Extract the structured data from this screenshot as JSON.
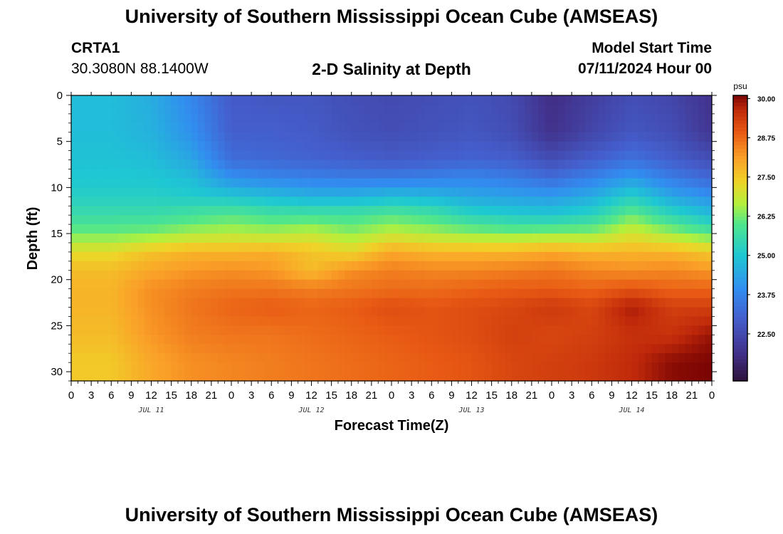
{
  "header": {
    "title": "University of Southern Mississippi Ocean Cube (AMSEAS)",
    "station": "CRTA1",
    "coordinates": "30.3080N  88.1400W",
    "plot_title": "2-D Salinity at Depth",
    "model_start_label": "Model Start Time",
    "model_start_value": "07/11/2024 Hour 00"
  },
  "footer": {
    "title": "University of Southern Mississippi Ocean Cube (AMSEAS)"
  },
  "chart_data": {
    "type": "heatmap",
    "title": "2-D Salinity at Depth",
    "xlabel": "Forecast Time(Z)",
    "ylabel": "Depth (ft)",
    "x_hours": [
      0,
      3,
      6,
      9,
      12,
      15,
      18,
      21,
      24,
      27,
      30,
      33,
      36,
      39,
      42,
      45,
      48,
      51,
      54,
      57,
      60,
      63,
      66,
      69,
      72,
      75,
      78,
      81,
      84,
      87,
      90,
      93,
      96
    ],
    "x_tick_labels": [
      "0",
      "3",
      "6",
      "9",
      "12",
      "15",
      "18",
      "21",
      "0",
      "3",
      "6",
      "9",
      "12",
      "15",
      "18",
      "21",
      "0",
      "3",
      "6",
      "9",
      "12",
      "15",
      "18",
      "21",
      "0",
      "3",
      "6",
      "9",
      "12",
      "15",
      "18",
      "21",
      "0"
    ],
    "day_labels": [
      {
        "x_hour": 12,
        "label": "JUL 11"
      },
      {
        "x_hour": 36,
        "label": "JUL 12"
      },
      {
        "x_hour": 60,
        "label": "JUL 13"
      },
      {
        "x_hour": 84,
        "label": "JUL 14"
      }
    ],
    "y_ticks": [
      0,
      5,
      10,
      15,
      20,
      25,
      30
    ],
    "y_tick_labels": [
      "0",
      "5",
      "10",
      "15",
      "20",
      "25",
      "30"
    ],
    "ylim": [
      0,
      31
    ],
    "y_inverted": true,
    "depth_levels": [
      0,
      4,
      7,
      9,
      11,
      13,
      15,
      17,
      19,
      21,
      23,
      26,
      29
    ],
    "time_hours": [
      0,
      6,
      12,
      18,
      24,
      30,
      36,
      42,
      48,
      54,
      60,
      66,
      72,
      78,
      84,
      90,
      96
    ],
    "values_psu": [
      [
        24.8,
        24.8,
        24.5,
        23.8,
        22.9,
        22.8,
        22.8,
        22.6,
        22.5,
        22.6,
        22.7,
        22.5,
        21.8,
        22.2,
        22.6,
        22.4,
        21.9
      ],
      [
        24.8,
        24.8,
        24.6,
        24.0,
        23.0,
        23.0,
        22.9,
        22.7,
        22.6,
        22.7,
        22.8,
        22.6,
        21.9,
        22.4,
        22.8,
        22.6,
        22.0
      ],
      [
        24.9,
        24.9,
        24.8,
        24.4,
        23.3,
        23.2,
        23.1,
        23.0,
        22.9,
        23.0,
        23.1,
        23.0,
        22.6,
        23.0,
        23.4,
        23.0,
        22.6
      ],
      [
        25.0,
        25.0,
        25.0,
        24.8,
        24.0,
        23.8,
        23.7,
        23.6,
        23.6,
        23.7,
        23.8,
        23.6,
        23.3,
        23.7,
        24.2,
        23.6,
        23.2
      ],
      [
        25.2,
        25.2,
        25.2,
        25.1,
        25.0,
        24.8,
        24.6,
        24.6,
        24.8,
        24.7,
        24.4,
        24.3,
        24.2,
        24.5,
        25.2,
        24.4,
        24.0
      ],
      [
        25.6,
        25.6,
        25.6,
        25.8,
        26.0,
        25.8,
        25.8,
        25.8,
        26.0,
        25.8,
        25.3,
        25.1,
        25.0,
        25.3,
        26.2,
        25.4,
        24.8
      ],
      [
        26.2,
        26.2,
        26.3,
        26.6,
        26.7,
        26.6,
        26.8,
        26.4,
        26.8,
        26.6,
        26.4,
        26.3,
        26.4,
        26.4,
        27.0,
        26.5,
        26.0
      ],
      [
        27.2,
        27.2,
        27.6,
        27.8,
        27.8,
        27.9,
        27.6,
        27.3,
        28.0,
        27.8,
        27.8,
        27.8,
        28.0,
        27.8,
        27.8,
        27.8,
        27.5
      ],
      [
        27.7,
        27.7,
        28.0,
        28.2,
        28.3,
        28.2,
        27.7,
        28.3,
        28.5,
        28.4,
        28.4,
        28.5,
        28.6,
        28.4,
        28.3,
        28.4,
        28.2
      ],
      [
        27.8,
        27.8,
        28.3,
        28.5,
        28.6,
        28.6,
        28.5,
        28.6,
        28.7,
        28.7,
        28.8,
        28.9,
        28.9,
        28.8,
        29.0,
        28.8,
        28.8
      ],
      [
        27.8,
        27.8,
        28.3,
        28.6,
        28.8,
        28.9,
        28.8,
        28.9,
        29.1,
        29.0,
        29.1,
        29.2,
        29.4,
        29.2,
        29.8,
        29.3,
        29.3
      ],
      [
        27.7,
        27.7,
        28.2,
        28.5,
        28.6,
        28.6,
        28.7,
        28.8,
        28.9,
        29.0,
        29.1,
        29.3,
        29.2,
        29.3,
        29.5,
        29.5,
        29.9
      ],
      [
        27.5,
        27.5,
        28.0,
        28.3,
        28.4,
        28.5,
        28.6,
        28.7,
        28.8,
        28.9,
        29.0,
        29.2,
        29.3,
        29.4,
        29.6,
        30.0,
        30.1
      ]
    ],
    "colorbar": {
      "unit": "psu",
      "tick_labels": [
        "30.00",
        "28.75",
        "27.50",
        "26.25",
        "25.00",
        "23.75",
        "22.50"
      ],
      "tick_values": [
        30.0,
        28.75,
        27.5,
        26.25,
        25.0,
        23.75,
        22.5
      ],
      "range": [
        21.0,
        30.1
      ]
    }
  }
}
